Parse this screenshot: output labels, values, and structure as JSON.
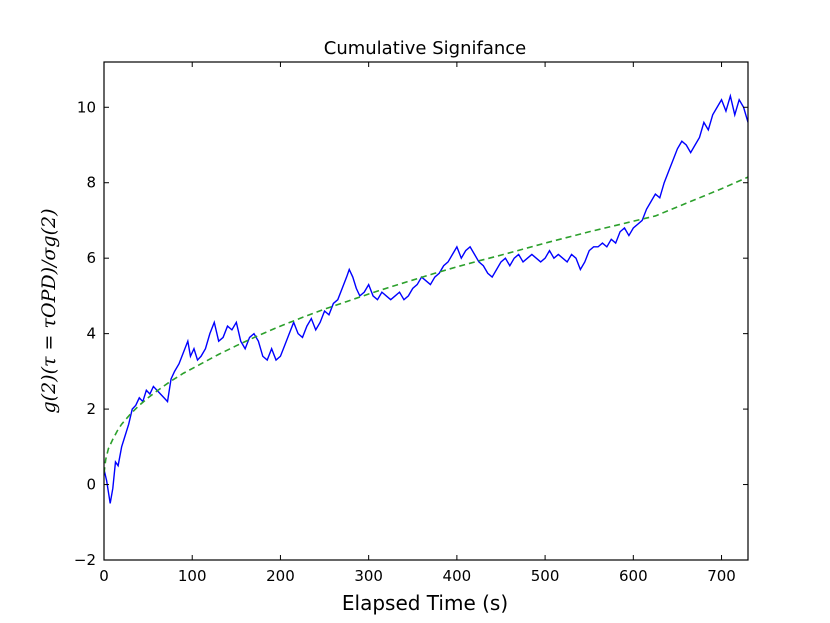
{
  "chart_data": {
    "type": "line",
    "title": "Cumulative Signifance",
    "xlabel": "Elapsed Time (s)",
    "ylabel": "g(2)(τ = τOPD)/σg(2)",
    "xlim": [
      0,
      730
    ],
    "ylim": [
      -2,
      11.2
    ],
    "xticks": [
      0,
      100,
      200,
      300,
      400,
      500,
      600,
      700
    ],
    "yticks": [
      -2,
      0,
      2,
      4,
      6,
      8,
      10
    ],
    "grid": false,
    "legend": "none",
    "series": [
      {
        "color": "#0000ff",
        "style": "solid",
        "x": [
          0,
          3,
          7,
          10,
          13,
          16,
          20,
          24,
          28,
          32,
          36,
          40,
          44,
          48,
          52,
          56,
          60,
          64,
          68,
          72,
          76,
          80,
          85,
          90,
          95,
          98,
          102,
          106,
          110,
          115,
          120,
          125,
          130,
          135,
          140,
          145,
          150,
          155,
          160,
          165,
          170,
          175,
          180,
          185,
          190,
          195,
          200,
          205,
          210,
          215,
          220,
          225,
          230,
          235,
          240,
          245,
          250,
          255,
          260,
          265,
          270,
          275,
          278,
          282,
          286,
          290,
          295,
          300,
          305,
          310,
          315,
          320,
          325,
          330,
          335,
          340,
          345,
          350,
          355,
          360,
          365,
          370,
          375,
          380,
          385,
          390,
          395,
          400,
          405,
          410,
          415,
          420,
          425,
          430,
          435,
          440,
          445,
          450,
          455,
          460,
          465,
          470,
          475,
          480,
          485,
          490,
          495,
          500,
          505,
          510,
          515,
          520,
          525,
          530,
          535,
          540,
          545,
          550,
          555,
          560,
          565,
          570,
          575,
          580,
          585,
          590,
          595,
          600,
          605,
          610,
          615,
          620,
          625,
          630,
          635,
          640,
          645,
          650,
          655,
          660,
          665,
          670,
          675,
          680,
          685,
          690,
          695,
          700,
          705,
          710,
          715,
          720,
          725,
          730
        ],
        "y": [
          0.4,
          0.1,
          -0.5,
          -0.1,
          0.6,
          0.5,
          1.0,
          1.3,
          1.6,
          2.0,
          2.1,
          2.3,
          2.2,
          2.5,
          2.4,
          2.6,
          2.5,
          2.4,
          2.3,
          2.2,
          2.8,
          3.0,
          3.2,
          3.5,
          3.8,
          3.4,
          3.6,
          3.3,
          3.4,
          3.6,
          4.0,
          4.3,
          3.8,
          3.9,
          4.2,
          4.1,
          4.3,
          3.8,
          3.6,
          3.9,
          4.0,
          3.8,
          3.4,
          3.3,
          3.6,
          3.3,
          3.4,
          3.7,
          4.0,
          4.3,
          4.0,
          3.9,
          4.2,
          4.4,
          4.1,
          4.3,
          4.6,
          4.5,
          4.8,
          4.9,
          5.2,
          5.5,
          5.7,
          5.5,
          5.2,
          5.0,
          5.1,
          5.3,
          5.0,
          4.9,
          5.1,
          5.0,
          4.9,
          5.0,
          5.1,
          4.9,
          5.0,
          5.2,
          5.3,
          5.5,
          5.4,
          5.3,
          5.5,
          5.6,
          5.8,
          5.9,
          6.1,
          6.3,
          6.0,
          6.2,
          6.3,
          6.1,
          5.9,
          5.8,
          5.6,
          5.5,
          5.7,
          5.9,
          6.0,
          5.8,
          6.0,
          6.1,
          5.9,
          6.0,
          6.1,
          6.0,
          5.9,
          6.0,
          6.2,
          6.0,
          6.1,
          6.0,
          5.9,
          6.1,
          6.0,
          5.7,
          5.9,
          6.2,
          6.3,
          6.3,
          6.4,
          6.3,
          6.5,
          6.4,
          6.7,
          6.8,
          6.6,
          6.8,
          6.9,
          7.0,
          7.3,
          7.5,
          7.7,
          7.6,
          8.0,
          8.3,
          8.6,
          8.9,
          9.1,
          9.0,
          8.8,
          9.0,
          9.2,
          9.6,
          9.4,
          9.8,
          10.0,
          10.2,
          9.9,
          10.3,
          9.8,
          10.2,
          10.0,
          9.6
        ]
      },
      {
        "color": "#2ca02c",
        "style": "dashed",
        "x": [
          0,
          2,
          5,
          10,
          15,
          20,
          30,
          40,
          50,
          60,
          75,
          90,
          110,
          130,
          150,
          175,
          200,
          225,
          250,
          275,
          300,
          325,
          350,
          375,
          400,
          425,
          450,
          475,
          500,
          525,
          550,
          575,
          600,
          625,
          650,
          675,
          700,
          730
        ],
        "y": [
          0.3,
          0.67,
          0.95,
          1.2,
          1.42,
          1.6,
          1.87,
          2.1,
          2.3,
          2.48,
          2.73,
          2.95,
          3.2,
          3.45,
          3.68,
          3.95,
          4.2,
          4.43,
          4.65,
          4.85,
          5.05,
          5.24,
          5.42,
          5.6,
          5.77,
          5.93,
          6.08,
          6.24,
          6.4,
          6.55,
          6.7,
          6.84,
          6.98,
          7.12,
          7.36,
          7.6,
          7.84,
          8.15
        ]
      }
    ]
  }
}
